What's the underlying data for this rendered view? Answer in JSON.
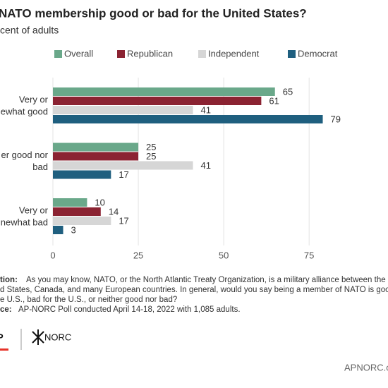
{
  "chart_data": {
    "type": "bar",
    "orientation": "horizontal",
    "title": "NATO membership good or bad for the United States?",
    "subtitle": "cent of adults",
    "categories": [
      [
        "Very or",
        "newhat good"
      ],
      [
        "er good nor",
        "bad"
      ],
      [
        "Very or",
        "newhat bad"
      ]
    ],
    "series": [
      {
        "name": "Overall",
        "color": "#6aa88a",
        "values": [
          65,
          25,
          10
        ]
      },
      {
        "name": "Republican",
        "color": "#8b2332",
        "values": [
          61,
          25,
          14
        ]
      },
      {
        "name": "Independent",
        "color": "#d6d6d6",
        "values": [
          41,
          41,
          17
        ]
      },
      {
        "name": "Democrat",
        "color": "#1f5f7f",
        "values": [
          79,
          17,
          3
        ]
      }
    ],
    "xlim": [
      0,
      95
    ],
    "xticks": [
      0,
      25,
      50,
      75
    ],
    "grid": true,
    "note_label": "tion:",
    "note": [
      "As you may know, NATO, or the North Atlantic Treaty Organization, is a military alliance between the",
      "d States, Canada, and many European countries. In general, would you say being a member of NATO is good",
      "e U.S., bad for the U.S., or neither good nor bad?"
    ],
    "source_label": "ce:",
    "source": "AP-NORC Poll conducted April 14-18, 2022 with 1,085 adults.",
    "logo_left": "P",
    "logo_right": "NORC",
    "site": "APNORC.o"
  }
}
